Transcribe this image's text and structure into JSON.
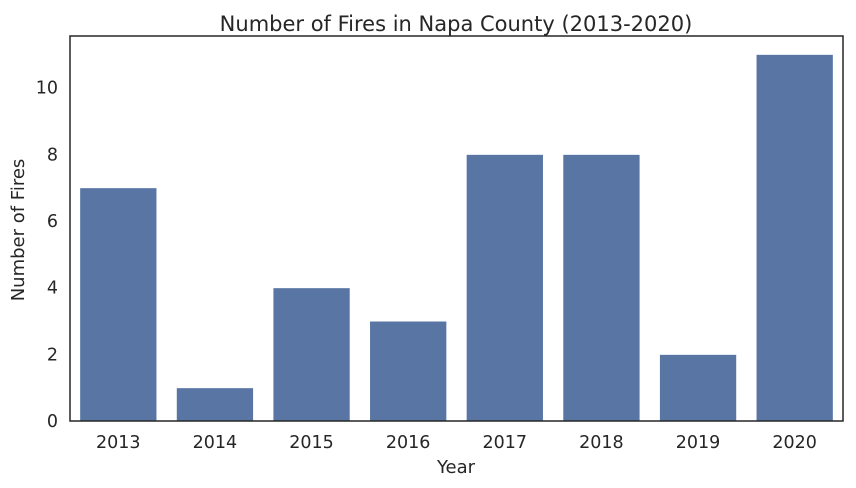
{
  "chart_data": {
    "type": "bar",
    "title": "Number of Fires in Napa County (2013-2020)",
    "xlabel": "Year",
    "ylabel": "Number of Fires",
    "categories": [
      "2013",
      "2014",
      "2015",
      "2016",
      "2017",
      "2018",
      "2019",
      "2020"
    ],
    "values": [
      7,
      1,
      4,
      3,
      8,
      8,
      2,
      11
    ],
    "ylim": [
      0,
      11.55
    ],
    "yticks": [
      0,
      2,
      4,
      6,
      8,
      10
    ],
    "grid": false,
    "legend": "none",
    "bar_color": "#5875a4",
    "spine_color": "#262626"
  }
}
